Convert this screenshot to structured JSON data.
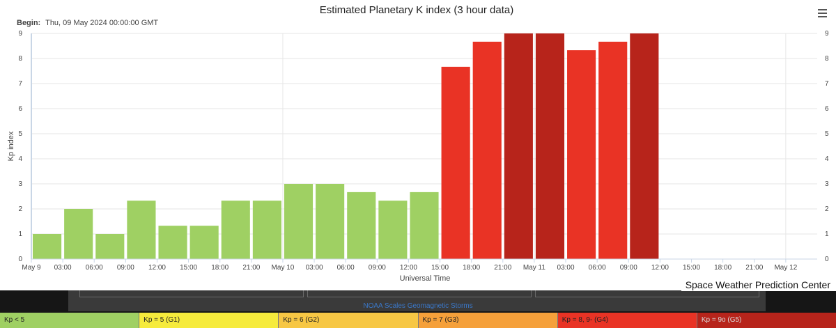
{
  "chart_data": {
    "type": "bar",
    "title": "Estimated Planetary K index (3 hour data)",
    "begin": {
      "label": "Begin:",
      "value": "Thu, 09 May 2024 00:00:00 GMT"
    },
    "xlabel": "Universal Time",
    "ylabel": "Kp index",
    "ylim": [
      0,
      9
    ],
    "y_ticks": [
      0,
      1,
      2,
      3,
      4,
      5,
      6,
      7,
      8,
      9
    ],
    "x_ticks": [
      "May 9",
      "03:00",
      "06:00",
      "09:00",
      "12:00",
      "15:00",
      "18:00",
      "21:00",
      "May 10",
      "03:00",
      "06:00",
      "09:00",
      "12:00",
      "15:00",
      "18:00",
      "21:00",
      "May 11",
      "03:00",
      "06:00",
      "09:00",
      "12:00",
      "15:00",
      "18:00",
      "21:00",
      "May 12"
    ],
    "categories": [
      "09 May 00:00",
      "09 May 03:00",
      "09 May 06:00",
      "09 May 09:00",
      "09 May 12:00",
      "09 May 15:00",
      "09 May 18:00",
      "09 May 21:00",
      "10 May 00:00",
      "10 May 03:00",
      "10 May 06:00",
      "10 May 09:00",
      "10 May 12:00",
      "10 May 15:00",
      "10 May 18:00",
      "10 May 21:00",
      "11 May 00:00",
      "11 May 03:00",
      "11 May 06:00",
      "11 May 09:00"
    ],
    "values": [
      1.0,
      2.0,
      1.0,
      2.33,
      1.33,
      1.33,
      2.33,
      2.33,
      3.0,
      3.0,
      2.67,
      2.33,
      2.67,
      7.67,
      8.67,
      9.0,
      9.0,
      8.33,
      8.67,
      9.0
    ],
    "grid": true,
    "legend": "none"
  },
  "colors": {
    "kp_below_5": "#9fd063",
    "g1": "#f6eb3c",
    "g2": "#f7c744",
    "g3": "#f5a03a",
    "g4": "#e93325",
    "g5": "#b7241b",
    "grid": "#e6e6e6",
    "axis": "#c9d6e6"
  },
  "header": {
    "menu_icon": "hamburger-menu-icon"
  },
  "footer": {
    "credit": "Space Weather Prediction Center",
    "scale_title": "NOAA Scales Geomagnetic Storms",
    "scale": [
      {
        "label": "Kp < 5",
        "color": "#9fd063"
      },
      {
        "label": "Kp = 5 (G1)",
        "color": "#f6eb3c"
      },
      {
        "label": "Kp = 6 (G2)",
        "color": "#f7c744"
      },
      {
        "label": "Kp = 7 (G3)",
        "color": "#f5a03a"
      },
      {
        "label": "Kp = 8, 9- (G4)",
        "color": "#e93325"
      },
      {
        "label": "Kp = 9o (G5)",
        "color": "#b7241b"
      }
    ]
  }
}
